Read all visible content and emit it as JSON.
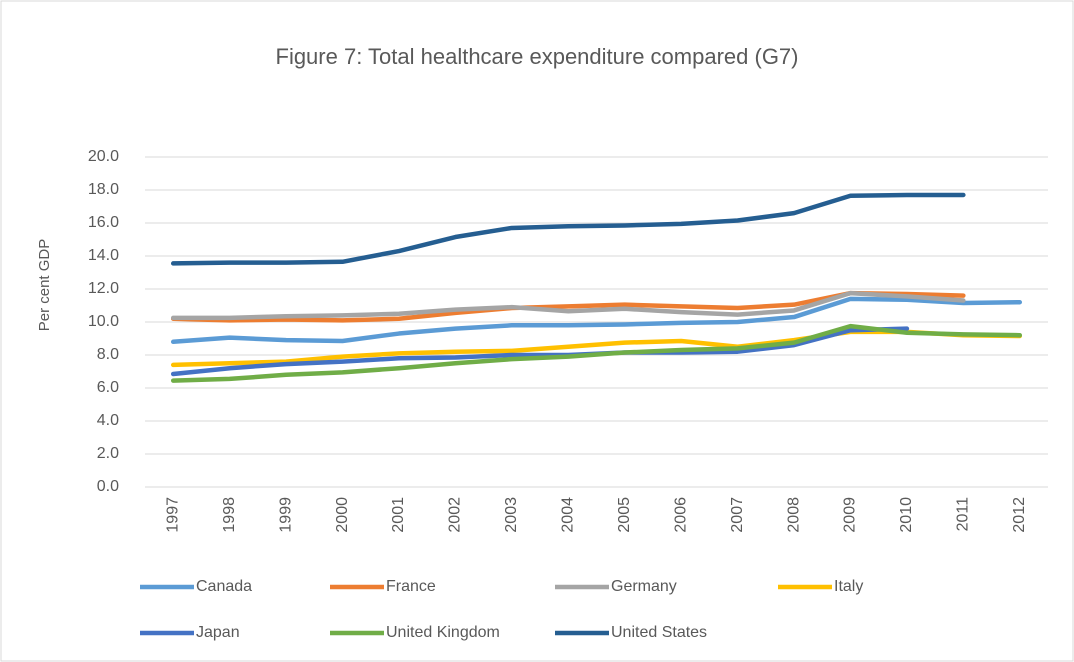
{
  "chart_data": {
    "type": "line",
    "title": "Figure 7: Total healthcare expenditure compared (G7)",
    "y_label": "Per cent GDP",
    "categories": [
      "1997",
      "1998",
      "1999",
      "2000",
      "2001",
      "2002",
      "2003",
      "2004",
      "2005",
      "2006",
      "2007",
      "2008",
      "2009",
      "2010",
      "2011",
      "2012"
    ],
    "ylim": [
      0,
      20
    ],
    "yticks": [
      {
        "value": 0,
        "label": "0.0"
      },
      {
        "value": 2,
        "label": "2.0"
      },
      {
        "value": 4,
        "label": "4.0"
      },
      {
        "value": 6,
        "label": "6.0"
      },
      {
        "value": 8,
        "label": "8.0"
      },
      {
        "value": 10,
        "label": "10.0"
      },
      {
        "value": 12,
        "label": "12.0"
      },
      {
        "value": 14,
        "label": "14.0"
      },
      {
        "value": 16,
        "label": "16.0"
      },
      {
        "value": 18,
        "label": "18.0"
      },
      {
        "value": 20,
        "label": "20.0"
      }
    ],
    "grid": true,
    "legend": "bottom",
    "series": [
      {
        "name": "Canada",
        "color": "#5b9bd5",
        "values": [
          8.8,
          9.05,
          8.9,
          8.85,
          9.3,
          9.6,
          9.8,
          9.8,
          9.85,
          9.95,
          10.0,
          10.3,
          11.4,
          11.35,
          11.15,
          11.2
        ]
      },
      {
        "name": "France",
        "color": "#ed7d31",
        "values": [
          10.2,
          10.1,
          10.15,
          10.1,
          10.2,
          10.55,
          10.85,
          10.95,
          11.05,
          10.95,
          10.85,
          11.05,
          11.75,
          11.7,
          11.6,
          null
        ]
      },
      {
        "name": "Germany",
        "color": "#a5a5a5",
        "values": [
          10.25,
          10.25,
          10.35,
          10.4,
          10.5,
          10.75,
          10.9,
          10.65,
          10.8,
          10.6,
          10.45,
          10.7,
          11.75,
          11.55,
          11.3,
          null
        ]
      },
      {
        "name": "Italy",
        "color": "#ffc000",
        "values": [
          7.4,
          7.5,
          7.6,
          7.9,
          8.1,
          8.2,
          8.25,
          8.5,
          8.75,
          8.85,
          8.5,
          8.9,
          9.4,
          9.4,
          9.2,
          9.15
        ]
      },
      {
        "name": "Japan",
        "color": "#4472c4",
        "values": [
          6.85,
          7.2,
          7.45,
          7.6,
          7.8,
          7.85,
          8.0,
          8.0,
          8.15,
          8.15,
          8.2,
          8.6,
          9.5,
          9.6,
          null,
          null
        ]
      },
      {
        "name": "United Kingdom",
        "color": "#70ad47",
        "values": [
          6.45,
          6.55,
          6.8,
          6.95,
          7.2,
          7.5,
          7.75,
          7.9,
          8.15,
          8.3,
          8.4,
          8.75,
          9.75,
          9.35,
          9.25,
          9.2
        ]
      },
      {
        "name": "United States",
        "color": "#255e91",
        "values": [
          13.55,
          13.6,
          13.6,
          13.65,
          14.3,
          15.15,
          15.7,
          15.8,
          15.85,
          15.95,
          16.15,
          16.6,
          17.65,
          17.7,
          17.7,
          null
        ]
      }
    ]
  }
}
